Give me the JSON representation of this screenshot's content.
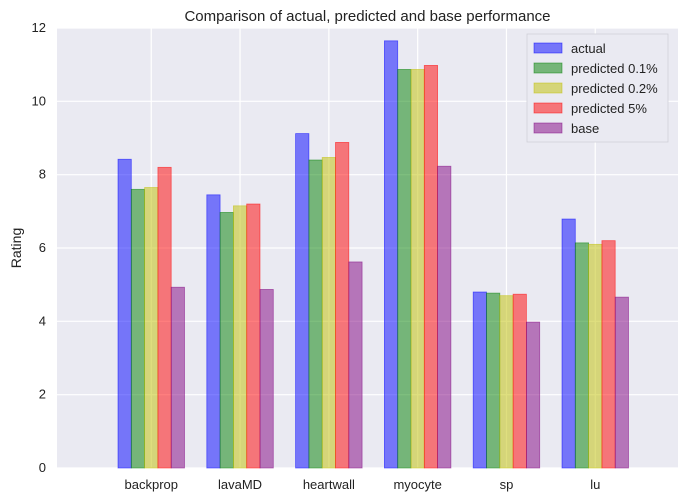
{
  "chart_data": {
    "type": "bar",
    "title": "Comparison of actual, predicted and base performance",
    "xlabel": "",
    "ylabel": "Rating",
    "ylim": [
      0,
      12
    ],
    "yticks": [
      "0",
      "2",
      "4",
      "6",
      "8",
      "10",
      "12"
    ],
    "grid": true,
    "legend_position": "top-right",
    "categories": [
      "backprop",
      "lavaMD",
      "heartwall",
      "myocyte",
      "sp",
      "lu"
    ],
    "series": [
      {
        "name": "actual",
        "color": "#0000ff",
        "values": [
          8.42,
          7.45,
          9.12,
          11.65,
          4.8,
          6.79
        ]
      },
      {
        "name": "predicted 0.1%",
        "color": "#008000",
        "values": [
          7.6,
          6.97,
          8.4,
          10.87,
          4.77,
          6.14
        ]
      },
      {
        "name": "predicted 0.2%",
        "color": "#bfbf00",
        "values": [
          7.65,
          7.15,
          8.47,
          10.87,
          4.7,
          6.1
        ]
      },
      {
        "name": "predicted 5%",
        "color": "#ff0000",
        "values": [
          8.2,
          7.2,
          8.88,
          10.98,
          4.74,
          6.2
        ]
      },
      {
        "name": "base",
        "color": "#800080",
        "values": [
          4.93,
          4.87,
          5.62,
          8.23,
          3.98,
          4.66
        ]
      }
    ]
  }
}
